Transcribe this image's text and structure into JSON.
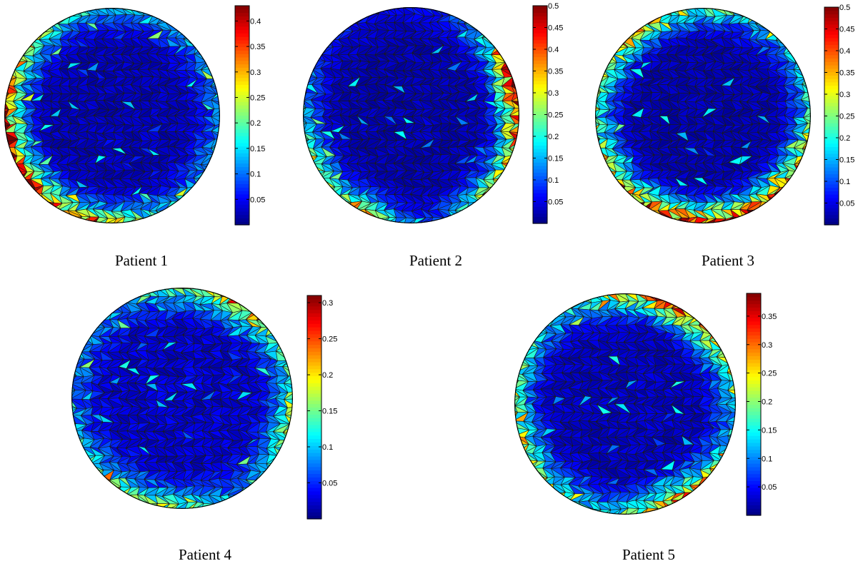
{
  "figure": {
    "colormap": "jet",
    "mesh_edge_color": "#1a1a1a"
  },
  "chart_data": [
    {
      "type": "heatmap",
      "caption": "Patient 1",
      "colorbar": {
        "min": 0,
        "max": 0.43,
        "ticks": [
          0.05,
          0.1,
          0.15,
          0.2,
          0.25,
          0.3,
          0.35,
          0.4
        ],
        "tick_labels": [
          "0.05",
          "0.1",
          "0.15",
          "0.2",
          "0.25",
          "0.3",
          "0.35",
          "0.4"
        ]
      },
      "boundary_profile": {
        "base": 0.1,
        "hotspots": [
          {
            "angle_deg": 200,
            "spread_deg": 45,
            "value": 0.38
          },
          {
            "angle_deg": 260,
            "spread_deg": 20,
            "value": 0.28
          }
        ]
      }
    },
    {
      "type": "heatmap",
      "caption": "Patient 2",
      "colorbar": {
        "min": 0,
        "max": 0.5,
        "ticks": [
          0.05,
          0.1,
          0.15,
          0.2,
          0.25,
          0.3,
          0.35,
          0.4,
          0.45,
          0.5
        ],
        "tick_labels": [
          "0.05",
          "0.1",
          "0.15",
          "0.2",
          "0.25",
          "0.3",
          "0.35",
          "0.4",
          "0.45",
          "0.5"
        ]
      },
      "boundary_profile": {
        "base": 0.04,
        "hotspots": [
          {
            "angle_deg": 10,
            "spread_deg": 25,
            "value": 0.48
          },
          {
            "angle_deg": 330,
            "spread_deg": 25,
            "value": 0.3
          },
          {
            "angle_deg": 210,
            "spread_deg": 30,
            "value": 0.22
          },
          {
            "angle_deg": 240,
            "spread_deg": 15,
            "value": 0.32
          }
        ]
      }
    },
    {
      "type": "heatmap",
      "caption": "Patient 3",
      "colorbar": {
        "min": 0,
        "max": 0.5,
        "ticks": [
          0.05,
          0.1,
          0.15,
          0.2,
          0.25,
          0.3,
          0.35,
          0.4,
          0.45,
          0.5
        ],
        "tick_labels": [
          "0.05",
          "0.1",
          "0.15",
          "0.2",
          "0.25",
          "0.3",
          "0.35",
          "0.4",
          "0.45",
          "0.5"
        ]
      },
      "boundary_profile": {
        "base": 0.12,
        "hotspots": [
          {
            "angle_deg": 270,
            "spread_deg": 55,
            "value": 0.45
          },
          {
            "angle_deg": 130,
            "spread_deg": 40,
            "value": 0.3
          }
        ]
      }
    },
    {
      "type": "heatmap",
      "caption": "Patient 4",
      "colorbar": {
        "min": 0,
        "max": 0.31,
        "ticks": [
          0.05,
          0.1,
          0.15,
          0.2,
          0.25,
          0.3
        ],
        "tick_labels": [
          "0.05",
          "0.1",
          "0.15",
          "0.2",
          "0.25",
          "0.3"
        ]
      },
      "boundary_profile": {
        "base": 0.06,
        "hotspots": [
          {
            "angle_deg": 60,
            "spread_deg": 25,
            "value": 0.18
          },
          {
            "angle_deg": 350,
            "spread_deg": 20,
            "value": 0.14
          },
          {
            "angle_deg": 250,
            "spread_deg": 25,
            "value": 0.15
          }
        ]
      }
    },
    {
      "type": "heatmap",
      "caption": "Patient 5",
      "colorbar": {
        "min": 0,
        "max": 0.39,
        "ticks": [
          0.05,
          0.1,
          0.15,
          0.2,
          0.25,
          0.3,
          0.35
        ],
        "tick_labels": [
          "0.05",
          "0.1",
          "0.15",
          "0.2",
          "0.25",
          "0.3",
          "0.35"
        ]
      },
      "boundary_profile": {
        "base": 0.1,
        "hotspots": [
          {
            "angle_deg": 60,
            "spread_deg": 30,
            "value": 0.3
          },
          {
            "angle_deg": 200,
            "spread_deg": 30,
            "value": 0.2
          },
          {
            "angle_deg": 300,
            "spread_deg": 20,
            "value": 0.28
          }
        ]
      }
    }
  ]
}
